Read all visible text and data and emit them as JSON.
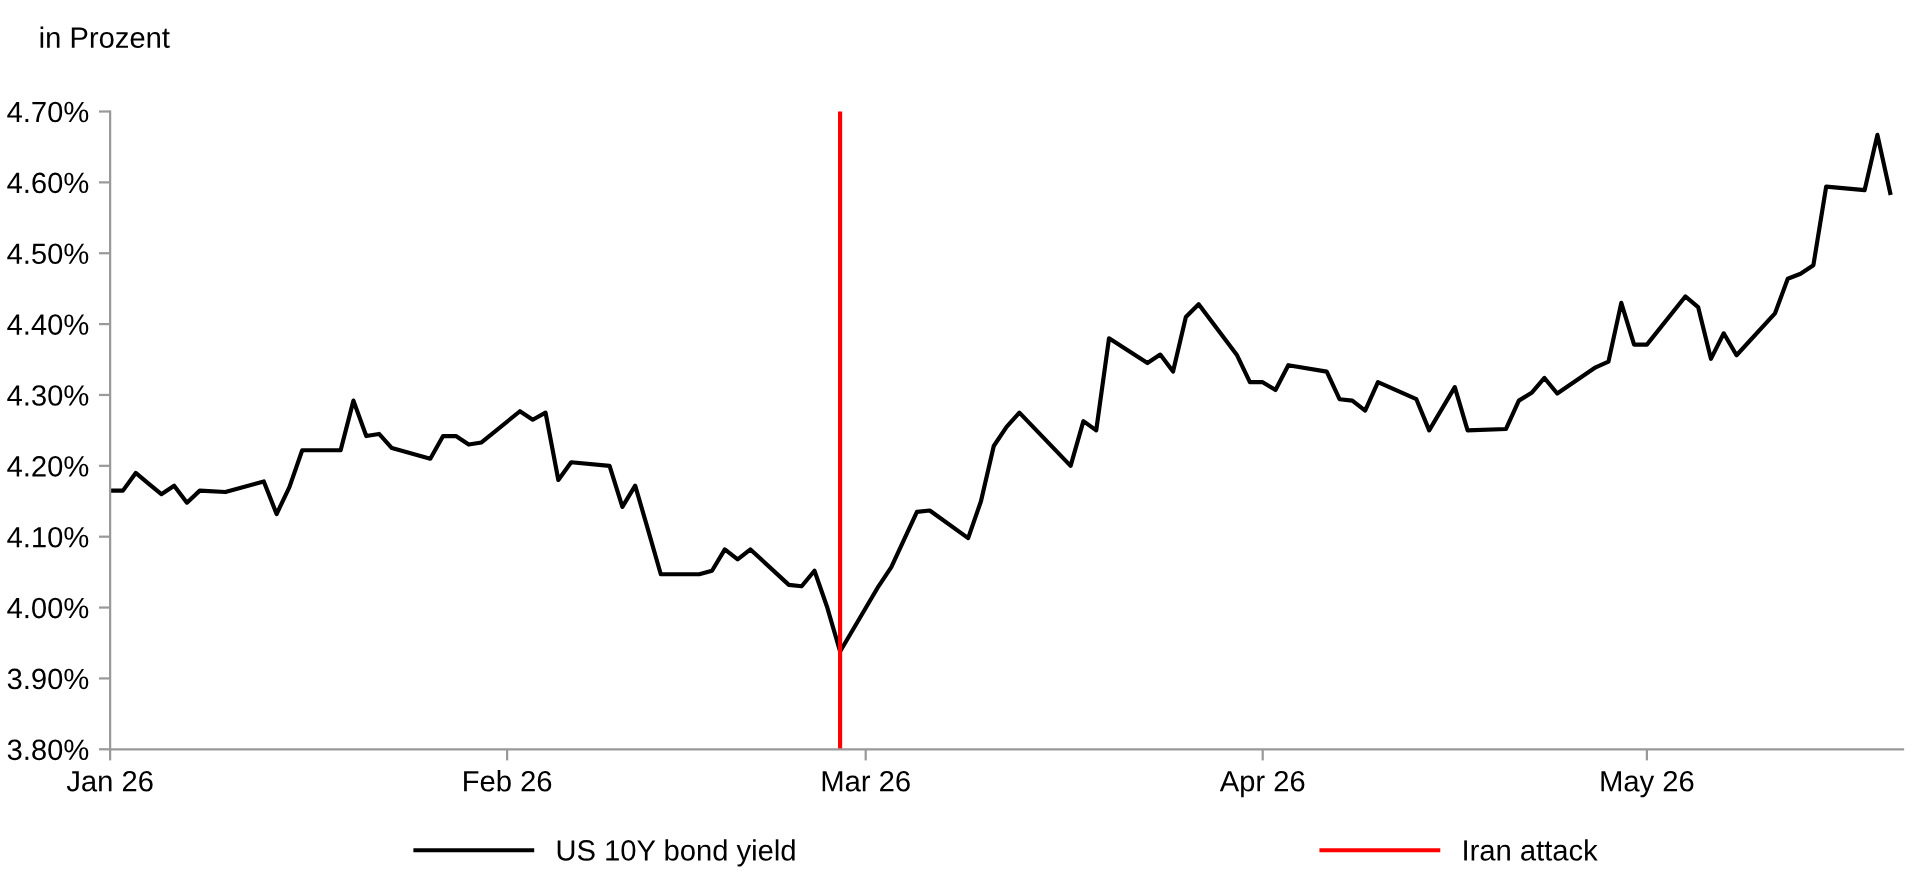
{
  "chart_data": {
    "type": "line",
    "ylabel": "in Prozent",
    "x": [
      "2026-01-01",
      "2026-01-02",
      "2026-01-03",
      "2026-01-04",
      "2026-01-05",
      "2026-01-06",
      "2026-01-07",
      "2026-01-08",
      "2026-01-10",
      "2026-01-13",
      "2026-01-14",
      "2026-01-15",
      "2026-01-16",
      "2026-01-19",
      "2026-01-20",
      "2026-01-21",
      "2026-01-22",
      "2026-01-23",
      "2026-01-26",
      "2026-01-27",
      "2026-01-28",
      "2026-01-29",
      "2026-01-30",
      "2026-02-02",
      "2026-02-03",
      "2026-02-04",
      "2026-02-05",
      "2026-02-06",
      "2026-02-09",
      "2026-02-10",
      "2026-02-11",
      "2026-02-12",
      "2026-02-13",
      "2026-02-16",
      "2026-02-17",
      "2026-02-18",
      "2026-02-19",
      "2026-02-20",
      "2026-02-23",
      "2026-02-24",
      "2026-02-25",
      "2026-02-26",
      "2026-02-27",
      "2026-03-02",
      "2026-03-03",
      "2026-03-05",
      "2026-03-06",
      "2026-03-09",
      "2026-03-10",
      "2026-03-11",
      "2026-03-12",
      "2026-03-13",
      "2026-03-17",
      "2026-03-18",
      "2026-03-19",
      "2026-03-20",
      "2026-03-23",
      "2026-03-24",
      "2026-03-25",
      "2026-03-26",
      "2026-03-27",
      "2026-03-30",
      "2026-03-31",
      "2026-04-01",
      "2026-04-02",
      "2026-04-03",
      "2026-04-06",
      "2026-04-07",
      "2026-04-08",
      "2026-04-09",
      "2026-04-10",
      "2026-04-13",
      "2026-04-14",
      "2026-04-16",
      "2026-04-17",
      "2026-04-20",
      "2026-04-21",
      "2026-04-22",
      "2026-04-23",
      "2026-04-24",
      "2026-04-27",
      "2026-04-28",
      "2026-04-29",
      "2026-04-30",
      "2026-05-01",
      "2026-05-04",
      "2026-05-05",
      "2026-05-06",
      "2026-05-07",
      "2026-05-08",
      "2026-05-11",
      "2026-05-12",
      "2026-05-13",
      "2026-05-14",
      "2026-05-15",
      "2026-05-18",
      "2026-05-19",
      "2026-05-20"
    ],
    "series": [
      {
        "name": "US 10Y bond yield",
        "color": "#000000",
        "values": [
          4.165,
          4.165,
          4.19,
          4.175,
          4.16,
          4.172,
          4.148,
          4.165,
          4.163,
          4.178,
          4.132,
          4.17,
          4.222,
          4.222,
          4.292,
          4.242,
          4.245,
          4.225,
          4.21,
          4.242,
          4.242,
          4.23,
          4.233,
          4.277,
          4.265,
          4.275,
          4.18,
          4.205,
          4.2,
          4.142,
          4.172,
          4.11,
          4.047,
          4.047,
          4.052,
          4.082,
          4.068,
          4.082,
          4.032,
          4.03,
          4.052,
          4.0,
          3.938,
          4.03,
          4.057,
          4.135,
          4.137,
          4.098,
          4.15,
          4.228,
          4.255,
          4.275,
          4.2,
          4.263,
          4.25,
          4.38,
          4.345,
          4.357,
          4.333,
          4.41,
          4.428,
          4.356,
          4.318,
          4.318,
          4.307,
          4.342,
          4.333,
          4.294,
          4.292,
          4.278,
          4.318,
          4.294,
          4.25,
          4.311,
          4.25,
          4.252,
          4.292,
          4.303,
          4.324,
          4.302,
          4.339,
          4.347,
          4.43,
          4.371,
          4.371,
          4.439,
          4.424,
          4.351,
          4.387,
          4.356,
          4.415,
          4.464,
          4.471,
          4.483,
          4.594,
          4.589,
          4.667,
          4.585
        ]
      }
    ],
    "ref_lines": [
      {
        "axis": "x",
        "value": "2026-02-27",
        "label": "Iran attack",
        "color": "#ff0000"
      }
    ],
    "xlim": [
      "2026-01-01",
      "2026-05-21"
    ],
    "xticks": [
      {
        "value": "2026-01-01",
        "label": "Jan 26"
      },
      {
        "value": "2026-02-01",
        "label": "Feb 26"
      },
      {
        "value": "2026-03-01",
        "label": "Mar 26"
      },
      {
        "value": "2026-04-01",
        "label": "Apr 26"
      },
      {
        "value": "2026-05-01",
        "label": "May 26"
      }
    ],
    "ylim": [
      3.8,
      4.7
    ],
    "yticks": [
      {
        "value": 3.8,
        "label": "3.80%"
      },
      {
        "value": 3.9,
        "label": "3.90%"
      },
      {
        "value": 4.0,
        "label": "4.00%"
      },
      {
        "value": 4.1,
        "label": "4.10%"
      },
      {
        "value": 4.2,
        "label": "4.20%"
      },
      {
        "value": 4.3,
        "label": "4.30%"
      },
      {
        "value": 4.4,
        "label": "4.40%"
      },
      {
        "value": 4.5,
        "label": "4.50%"
      },
      {
        "value": 4.6,
        "label": "4.60%"
      },
      {
        "value": 4.7,
        "label": "4.70%"
      }
    ],
    "grid": false,
    "legend": "bottom",
    "marker": "none",
    "line_style": "solid"
  }
}
